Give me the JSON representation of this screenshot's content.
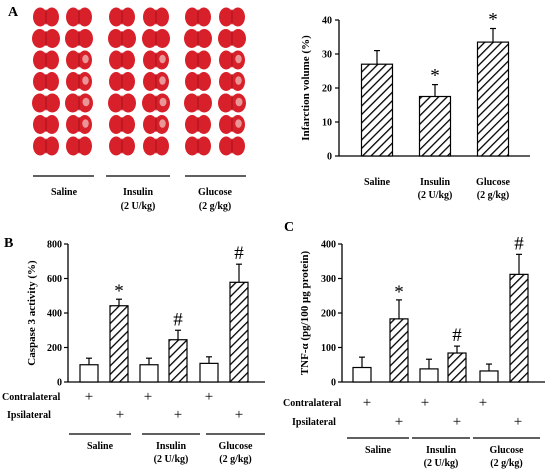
{
  "figure": {
    "panel_labels": [
      "A",
      "B",
      "C"
    ]
  },
  "panel_a_photo": {
    "description": "TTC-stained coronal brain slices",
    "groups": [
      {
        "label_line1": "Saline",
        "label_line2": ""
      },
      {
        "label_line1": "Insulin",
        "label_line2": "(2 U/kg)"
      },
      {
        "label_line1": "Glucose",
        "label_line2": "(2 g/kg)"
      }
    ],
    "slice_color": "#d8202a",
    "slice_dark": "#a8101a"
  },
  "chart_data": [
    {
      "id": "A",
      "type": "bar",
      "ylabel": "Infarction volume (%)",
      "ylim": [
        0,
        40
      ],
      "yticks": [
        0,
        10,
        20,
        30,
        40
      ],
      "categories": [
        {
          "line1": "Saline",
          "line2": ""
        },
        {
          "line1": "Insulin",
          "line2": "(2 U/kg)"
        },
        {
          "line1": "Glucose",
          "line2": "(2 g/kg)"
        }
      ],
      "values": [
        27,
        17.5,
        33.5
      ],
      "errors": [
        4,
        3.5,
        4
      ],
      "marks": [
        "",
        "*",
        "*"
      ],
      "pattern": "diagonal-hatch"
    },
    {
      "id": "B",
      "type": "bar",
      "ylabel": "Caspase 3 activity (%)",
      "ylim": [
        0,
        800
      ],
      "yticks": [
        0,
        200,
        400,
        600,
        800
      ],
      "groups": [
        {
          "line1": "Saline",
          "line2": ""
        },
        {
          "line1": "Insulin",
          "line2": "(2 U/kg)"
        },
        {
          "line1": "Glucose",
          "line2": "(2 g/kg)"
        }
      ],
      "row_labels": [
        "Contralateral",
        "Ipsilateral"
      ],
      "series": [
        {
          "name": "Contralateral",
          "fill": "white",
          "values": [
            100,
            100,
            108
          ],
          "errors": [
            38,
            38,
            38
          ]
        },
        {
          "name": "Ipsilateral",
          "fill": "hatch",
          "values": [
            442,
            245,
            578
          ],
          "errors": [
            38,
            55,
            105
          ]
        }
      ],
      "marks": [
        "*",
        "#",
        "#"
      ]
    },
    {
      "id": "C",
      "type": "bar",
      "ylabel": "TNF-α (pg/100 μg protein)",
      "ylim": [
        0,
        400
      ],
      "yticks": [
        0,
        100,
        200,
        300,
        400
      ],
      "groups": [
        {
          "line1": "Saline",
          "line2": ""
        },
        {
          "line1": "Insulin",
          "line2": "(2 U/kg)"
        },
        {
          "line1": "Glucose",
          "line2": "(2 g/kg)"
        }
      ],
      "row_labels": [
        "Contralateral",
        "Ipsilateral"
      ],
      "series": [
        {
          "name": "Contralateral",
          "fill": "white",
          "values": [
            42,
            38,
            32
          ],
          "errors": [
            30,
            28,
            20
          ]
        },
        {
          "name": "Ipsilateral",
          "fill": "hatch",
          "values": [
            183,
            84,
            312
          ],
          "errors": [
            55,
            20,
            58
          ]
        }
      ],
      "marks": [
        "*",
        "#",
        "#"
      ]
    }
  ],
  "plus_symbol": "+"
}
